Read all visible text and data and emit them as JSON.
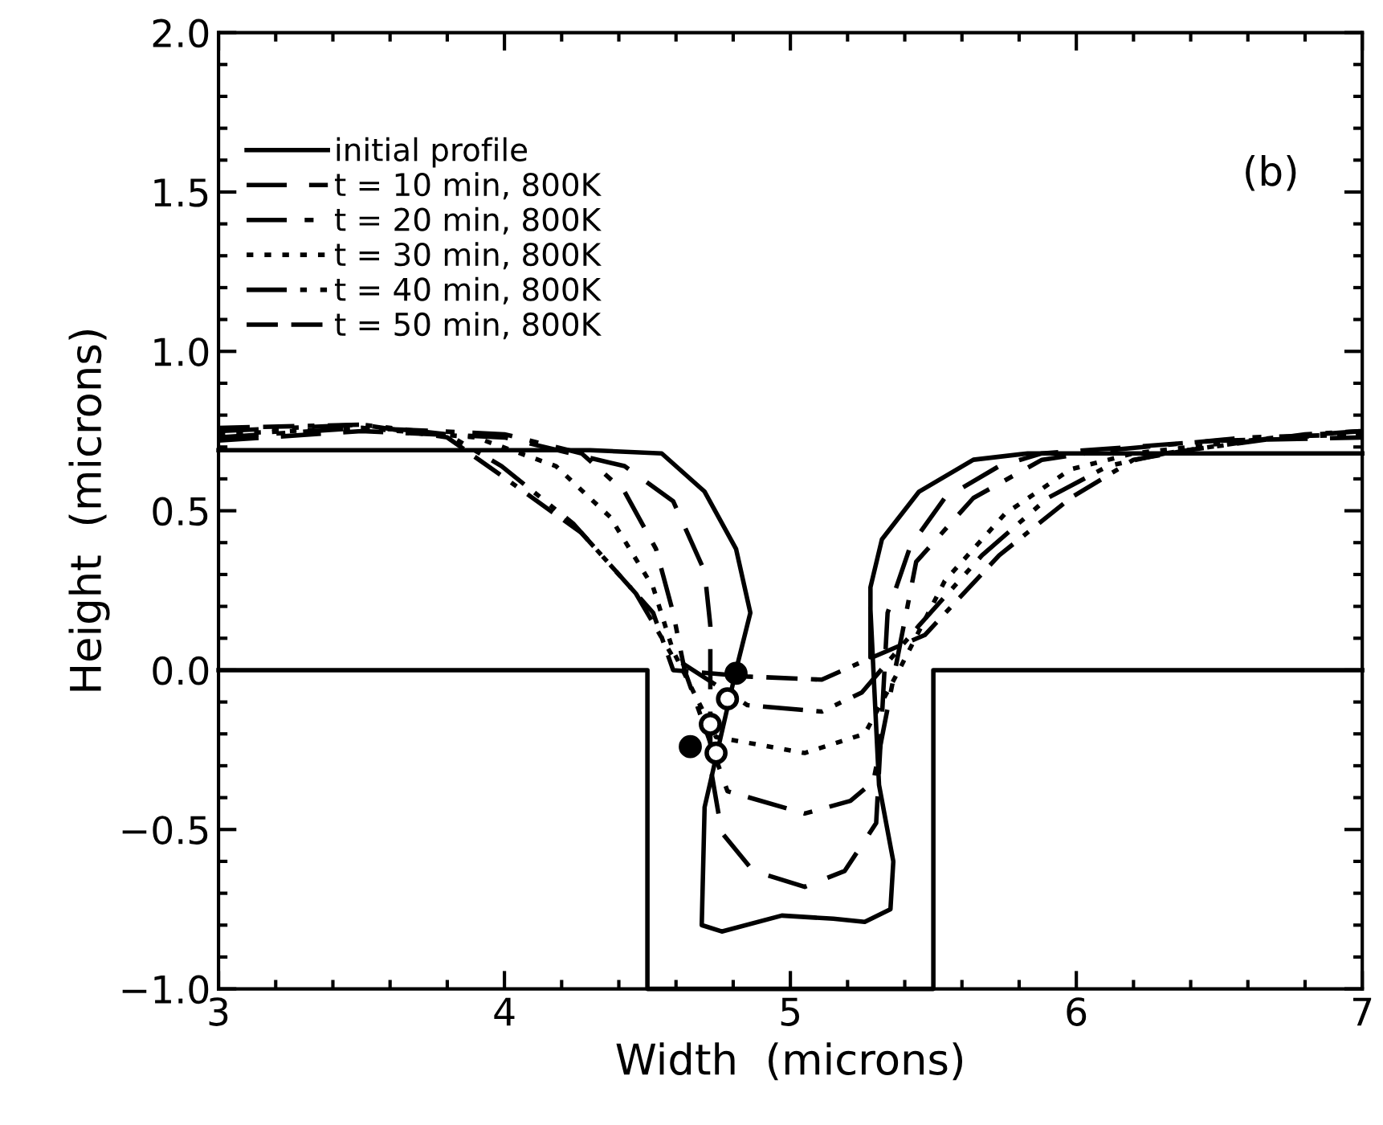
{
  "chart_data": {
    "type": "line",
    "xlabel": "Width  (microns)",
    "ylabel": "Height  (microns)",
    "xlim": [
      3,
      7
    ],
    "ylim": [
      -1.0,
      2.0
    ],
    "xticks": [
      3,
      4,
      5,
      6,
      7
    ],
    "yticks": [
      {
        "value": -1.0,
        "label": "−1.0"
      },
      {
        "value": -0.5,
        "label": "−0.5"
      },
      {
        "value": 0.0,
        "label": "0.0"
      },
      {
        "value": 0.5,
        "label": "0.5"
      },
      {
        "value": 1.0,
        "label": "1.0"
      },
      {
        "value": 1.5,
        "label": "1.5"
      },
      {
        "value": 2.0,
        "label": "2.0"
      }
    ],
    "grid": false,
    "legend": "top left",
    "annotations": [
      "(b)"
    ],
    "series": [
      {
        "color": "#000000",
        "line_style": "solid",
        "x": [
          3,
          4.5,
          4.5,
          5.5,
          5.5,
          7
        ],
        "values": [
          0,
          0,
          -1,
          -1,
          0,
          0
        ]
      },
      {
        "name": "initial profile",
        "color": "#000000",
        "line_style": "solid",
        "x": [
          3,
          4.3,
          4.55,
          4.7,
          4.81,
          4.86,
          4.81,
          4.7,
          4.69,
          4.76,
          4.97,
          5.15,
          5.26,
          5.35,
          5.36,
          5.31,
          5.28,
          5.28,
          5.28,
          5.32,
          5.45,
          5.64,
          5.83,
          7
        ],
        "values": [
          0.69,
          0.69,
          0.68,
          0.56,
          0.38,
          0.18,
          0.0,
          -0.43,
          -0.8,
          -0.82,
          -0.77,
          -0.78,
          -0.79,
          -0.75,
          -0.6,
          -0.36,
          0.19,
          0.04,
          0.26,
          0.41,
          0.56,
          0.66,
          0.68,
          0.68
        ]
      },
      {
        "name": "t = 10 min, 800K",
        "color": "#000000",
        "line_style": "dashed",
        "x": [
          3,
          3.5,
          4.0,
          4.42,
          4.59,
          4.7,
          4.72,
          4.72,
          4.72,
          4.76,
          4.87,
          5.05,
          5.19,
          5.3,
          5.34,
          5.42,
          5.54,
          5.73,
          5.88,
          6.5,
          7
        ],
        "values": [
          0.72,
          0.75,
          0.73,
          0.64,
          0.53,
          0.31,
          0.14,
          0.04,
          -0.3,
          -0.51,
          -0.63,
          -0.68,
          -0.63,
          -0.48,
          0.18,
          0.39,
          0.54,
          0.64,
          0.68,
          0.72,
          0.73
        ]
      },
      {
        "name": "t = 20 min, 800K",
        "color": "#000000",
        "line_style": "dashdot",
        "x": [
          3,
          3.5,
          4.0,
          4.27,
          4.42,
          4.53,
          4.59,
          4.63,
          4.78,
          5.05,
          5.21,
          5.29,
          5.44,
          5.64,
          5.88,
          6.11,
          6.6,
          7
        ],
        "values": [
          0.73,
          0.76,
          0.74,
          0.68,
          0.56,
          0.38,
          0.18,
          0.0,
          -0.38,
          -0.45,
          -0.41,
          -0.35,
          0.34,
          0.54,
          0.66,
          0.69,
          0.73,
          0.74
        ]
      },
      {
        "name": "t = 30 min, 800K",
        "color": "#000000",
        "line_style": "dotted",
        "x": [
          3,
          3.5,
          3.9,
          4.18,
          4.37,
          4.52,
          4.59,
          4.74,
          5.05,
          5.26,
          5.38,
          5.54,
          5.75,
          5.98,
          6.2,
          6.7,
          7
        ],
        "values": [
          0.74,
          0.76,
          0.73,
          0.64,
          0.48,
          0.26,
          0.06,
          -0.21,
          -0.26,
          -0.2,
          0.0,
          0.28,
          0.49,
          0.63,
          0.68,
          0.73,
          0.74
        ]
      },
      {
        "name": "t = 40 min, 800K",
        "color": "#000000",
        "line_style": "dashdotdot",
        "x": [
          3,
          3.5,
          3.8,
          3.99,
          4.24,
          4.46,
          4.59,
          4.85,
          5.11,
          5.25,
          5.45,
          5.67,
          5.9,
          6.11,
          6.31,
          6.7,
          7
        ],
        "values": [
          0.75,
          0.77,
          0.74,
          0.64,
          0.46,
          0.24,
          0.04,
          -0.11,
          -0.13,
          -0.07,
          0.14,
          0.36,
          0.54,
          0.64,
          0.68,
          0.73,
          0.75
        ]
      },
      {
        "name": "t = 50 min, 800K",
        "color": "#000000",
        "line_style": "dashdashdot",
        "x": [
          3,
          3.5,
          3.8,
          3.99,
          4.27,
          4.52,
          4.59,
          4.85,
          5.11,
          5.26,
          5.47,
          5.73,
          5.98,
          6.2,
          6.39,
          6.8,
          7
        ],
        "values": [
          0.76,
          0.77,
          0.73,
          0.61,
          0.43,
          0.18,
          0.0,
          -0.02,
          -0.03,
          0.03,
          0.11,
          0.36,
          0.54,
          0.66,
          0.69,
          0.74,
          0.75
        ]
      },
      {
        "type": "scatter",
        "marker": "circle",
        "color": "#000000",
        "x": [
          4.65,
          4.74,
          4.72,
          4.78,
          4.81
        ],
        "values": [
          -0.24,
          -0.26,
          -0.17,
          -0.09,
          -0.01
        ],
        "colors": [
          "#000000",
          "#ffffff",
          "#ffffff",
          "#ffffff",
          "#000000"
        ]
      }
    ]
  }
}
